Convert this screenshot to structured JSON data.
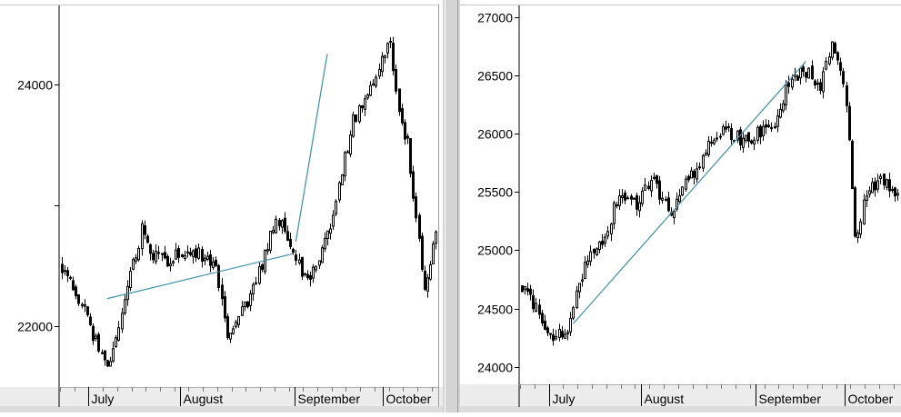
{
  "chart_data": [
    {
      "type": "candlestick",
      "y_axis_side": "left",
      "ylim": [
        21500,
        24650
      ],
      "y_ticks": [
        22000,
        24000
      ],
      "y_tick_labels": [
        "22000",
        "24000"
      ],
      "minor_y_ticks": [
        23000
      ],
      "x_months": [
        "July",
        "August",
        "September",
        "October"
      ],
      "month_starts": [
        10,
        42,
        82,
        113
      ],
      "total_bars": 132,
      "first_close": 22500,
      "path_knots": [
        [
          0,
          22500
        ],
        [
          5,
          22300
        ],
        [
          10,
          22000
        ],
        [
          16,
          21650
        ],
        [
          22,
          22200
        ],
        [
          28,
          22800
        ],
        [
          32,
          22600
        ],
        [
          38,
          22550
        ],
        [
          46,
          22650
        ],
        [
          54,
          22450
        ],
        [
          58,
          21950
        ],
        [
          64,
          22150
        ],
        [
          70,
          22500
        ],
        [
          75,
          22900
        ],
        [
          82,
          22600
        ],
        [
          86,
          22350
        ],
        [
          90,
          22550
        ],
        [
          94,
          22800
        ],
        [
          98,
          23300
        ],
        [
          102,
          23700
        ],
        [
          107,
          23900
        ],
        [
          112,
          24200
        ],
        [
          115,
          24350
        ],
        [
          118,
          23800
        ],
        [
          121,
          23500
        ],
        [
          124,
          22900
        ],
        [
          127,
          22300
        ],
        [
          131,
          22800
        ]
      ],
      "trendlines": [
        {
          "points": [
            [
              16,
              22230
            ],
            [
              81,
              22600
            ]
          ],
          "color": "#3b8fa8"
        },
        {
          "points": [
            [
              82,
              22700
            ],
            [
              93,
              24250
            ]
          ],
          "color": "#3b8fa8"
        }
      ]
    },
    {
      "type": "candlestick",
      "y_axis_side": "left",
      "ylim": [
        23850,
        27100
      ],
      "y_ticks": [
        24000,
        24500,
        25000,
        25500,
        26000,
        26500,
        27000
      ],
      "y_tick_labels": [
        "24000",
        "24500",
        "25000",
        "25500",
        "26000",
        "26500",
        "27000"
      ],
      "x_months": [
        "July",
        "August",
        "September",
        "October"
      ],
      "month_starts": [
        10,
        42,
        82,
        113
      ],
      "total_bars": 132,
      "first_close": 24700,
      "path_knots": [
        [
          0,
          24700
        ],
        [
          6,
          24450
        ],
        [
          10,
          24250
        ],
        [
          16,
          24300
        ],
        [
          22,
          24900
        ],
        [
          28,
          25050
        ],
        [
          34,
          25500
        ],
        [
          40,
          25400
        ],
        [
          46,
          25600
        ],
        [
          52,
          25300
        ],
        [
          58,
          25600
        ],
        [
          64,
          25850
        ],
        [
          70,
          26050
        ],
        [
          76,
          25950
        ],
        [
          82,
          26000
        ],
        [
          88,
          26100
        ],
        [
          94,
          26500
        ],
        [
          100,
          26500
        ],
        [
          104,
          26400
        ],
        [
          108,
          26750
        ],
        [
          112,
          26450
        ],
        [
          114,
          26000
        ],
        [
          116,
          25100
        ],
        [
          119,
          25400
        ],
        [
          124,
          25600
        ],
        [
          131,
          25500
        ]
      ],
      "trendlines": [
        {
          "points": [
            [
              18,
              24370
            ],
            [
              99,
              26620
            ]
          ],
          "color": "#3b8fa8"
        }
      ]
    }
  ]
}
